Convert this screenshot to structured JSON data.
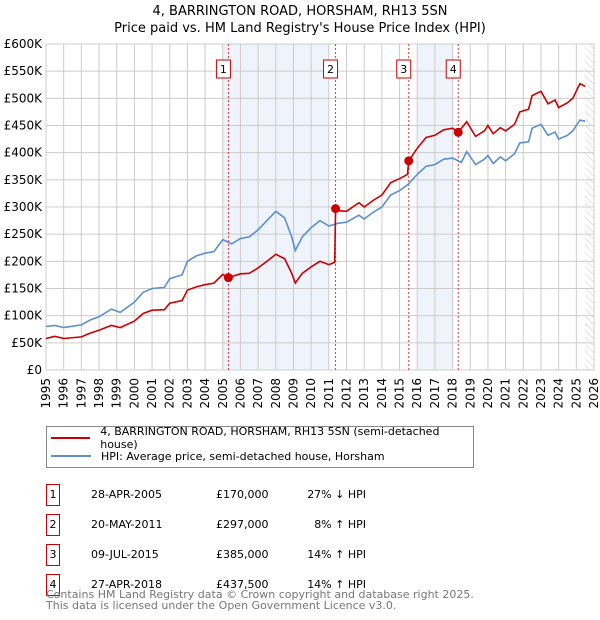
{
  "title": "4, BARRINGTON ROAD, HORSHAM, RH13 5SN",
  "subtitle": "Price paid vs. HM Land Registry's House Price Index (HPI)",
  "chart_data": {
    "type": "line",
    "title": "4, BARRINGTON ROAD, HORSHAM, RH13 5SN",
    "subtitle": "Price paid vs. HM Land Registry's House Price Index (HPI)",
    "xlim": [
      1995,
      2026
    ],
    "ylim": [
      0,
      600000
    ],
    "x_ticks": [
      "1995",
      "1996",
      "1997",
      "1998",
      "1999",
      "2000",
      "2001",
      "2002",
      "2003",
      "2004",
      "2005",
      "2006",
      "2007",
      "2008",
      "2009",
      "2010",
      "2011",
      "2012",
      "2013",
      "2014",
      "2015",
      "2016",
      "2017",
      "2018",
      "2019",
      "2020",
      "2021",
      "2022",
      "2023",
      "2024",
      "2025",
      "2026"
    ],
    "y_ticks": [
      {
        "value": 0,
        "label": "£0"
      },
      {
        "value": 50000,
        "label": "£50K"
      },
      {
        "value": 100000,
        "label": "£100K"
      },
      {
        "value": 150000,
        "label": "£150K"
      },
      {
        "value": 200000,
        "label": "£200K"
      },
      {
        "value": 250000,
        "label": "£250K"
      },
      {
        "value": 300000,
        "label": "£300K"
      },
      {
        "value": 350000,
        "label": "£350K"
      },
      {
        "value": 400000,
        "label": "£400K"
      },
      {
        "value": 450000,
        "label": "£450K"
      },
      {
        "value": 500000,
        "label": "£500K"
      },
      {
        "value": 550000,
        "label": "£550K"
      },
      {
        "value": 600000,
        "label": "£600K"
      }
    ],
    "grid": true,
    "shaded_ranges": [
      [
        2005.0,
        2011.0
      ],
      [
        2016.0,
        2018.0
      ]
    ],
    "forecast_hatch_from": 2025.5,
    "series": [
      {
        "name": "4, BARRINGTON ROAD, HORSHAM, RH13 5SN (semi-detached house)",
        "color": "#cc0000",
        "x": [
          1995,
          1995.5,
          1996,
          1997,
          1997.5,
          1998,
          1998.7,
          1999.2,
          2000,
          2000.5,
          2001,
          2001.7,
          2002,
          2002.7,
          2003,
          2003.5,
          2004,
          2004.5,
          2005,
          2005.32,
          2006,
          2006.5,
          2007,
          2007.5,
          2008,
          2008.5,
          2008.9,
          2009.1,
          2009.5,
          2010,
          2010.5,
          2011,
          2011.33,
          2011.38,
          2011.6,
          2012,
          2012.7,
          2013,
          2013.5,
          2014,
          2014.5,
          2015,
          2015.45,
          2015.52,
          2016,
          2016.5,
          2017,
          2017.5,
          2018,
          2018.32,
          2018.8,
          2019.3,
          2019.8,
          2020,
          2020.3,
          2020.7,
          2021,
          2021.5,
          2021.8,
          2022.3,
          2022.5,
          2023,
          2023.4,
          2023.8,
          2024,
          2024.5,
          2024.8,
          2025.2,
          2025.5
        ],
        "y": [
          58000,
          62000,
          58000,
          61000,
          68000,
          73000,
          82000,
          78000,
          90000,
          104000,
          110000,
          111000,
          123000,
          128000,
          147000,
          153000,
          157000,
          160000,
          176000,
          170000,
          177000,
          178000,
          188000,
          200000,
          213000,
          205000,
          178000,
          160000,
          178000,
          190000,
          200000,
          194000,
          198000,
          297000,
          293000,
          292000,
          308000,
          300000,
          312000,
          322000,
          345000,
          352000,
          360000,
          385000,
          408000,
          428000,
          432000,
          442000,
          445000,
          437500,
          457000,
          430000,
          440000,
          450000,
          435000,
          446000,
          440000,
          452000,
          475000,
          480000,
          505000,
          513000,
          490000,
          497000,
          483000,
          492000,
          500000,
          527000,
          522000
        ]
      },
      {
        "name": "HPI: Average price, semi-detached house, Horsham",
        "color": "#5b8fd0",
        "x": [
          1995,
          1995.5,
          1996,
          1997,
          1997.5,
          1998,
          1998.7,
          1999.2,
          2000,
          2000.5,
          2001,
          2001.7,
          2002,
          2002.7,
          2003,
          2003.5,
          2004,
          2004.5,
          2005,
          2005.5,
          2006,
          2006.5,
          2007,
          2007.5,
          2008,
          2008.5,
          2008.9,
          2009.1,
          2009.5,
          2010,
          2010.5,
          2011,
          2011.5,
          2012,
          2012.7,
          2013,
          2013.5,
          2014,
          2014.5,
          2015,
          2015.5,
          2016,
          2016.5,
          2017,
          2017.5,
          2018,
          2018.5,
          2018.8,
          2019.3,
          2019.8,
          2020,
          2020.3,
          2020.7,
          2021,
          2021.5,
          2021.8,
          2022.3,
          2022.5,
          2023,
          2023.4,
          2023.8,
          2024,
          2024.5,
          2024.8,
          2025.2,
          2025.5
        ],
        "y": [
          80000,
          82000,
          78000,
          83000,
          92000,
          98000,
          112000,
          106000,
          125000,
          143000,
          150000,
          152000,
          168000,
          175000,
          200000,
          210000,
          215000,
          218000,
          240000,
          232000,
          242000,
          245000,
          258000,
          275000,
          292000,
          280000,
          245000,
          220000,
          245000,
          262000,
          275000,
          265000,
          270000,
          272000,
          285000,
          278000,
          290000,
          300000,
          322000,
          330000,
          342000,
          360000,
          375000,
          378000,
          388000,
          390000,
          382000,
          402000,
          378000,
          388000,
          395000,
          380000,
          392000,
          385000,
          398000,
          418000,
          420000,
          445000,
          452000,
          432000,
          438000,
          425000,
          432000,
          440000,
          460000,
          458000
        ]
      }
    ],
    "sales": [
      {
        "label": "1",
        "x": 2005.32,
        "y": 170000,
        "date": "28-APR-2005",
        "price": "£170,000",
        "hpi": "27% ↓ HPI"
      },
      {
        "label": "2",
        "x": 2011.38,
        "y": 297000,
        "date": "20-MAY-2011",
        "price": "£297,000",
        "hpi": "8% ↑ HPI"
      },
      {
        "label": "3",
        "x": 2015.52,
        "y": 385000,
        "date": "09-JUL-2015",
        "price": "£385,000",
        "hpi": "14% ↑ HPI"
      },
      {
        "label": "4",
        "x": 2018.32,
        "y": 437500,
        "date": "27-APR-2018",
        "price": "£437,500",
        "hpi": "14% ↑ HPI"
      }
    ]
  },
  "legend": {
    "property": "4, BARRINGTON ROAD, HORSHAM, RH13 5SN (semi-detached house)",
    "hpi": "HPI: Average price, semi-detached house, Horsham"
  },
  "footer": {
    "line1": "Contains HM Land Registry data © Crown copyright and database right 2025.",
    "line2": "This data is licensed under the Open Government Licence v3.0."
  }
}
